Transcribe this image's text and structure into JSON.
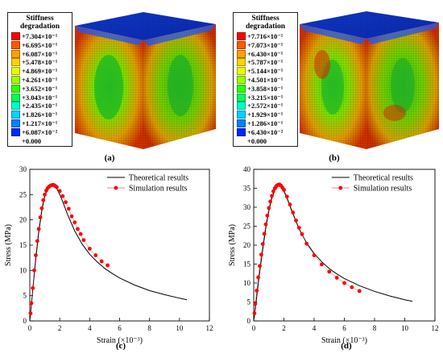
{
  "panels": {
    "a": {
      "label": "(a)",
      "legend_title_1": "Stiffness",
      "legend_title_2": "degradation",
      "entries": [
        "+7.304×10⁻¹",
        "+6.695×10⁻¹",
        "+6.087×10⁻¹",
        "+5.478×10⁻¹",
        "+4.869×10⁻¹",
        "+4.261×10⁻¹",
        "+3.652×10⁻¹",
        "+3.043×10⁻¹",
        "+2.435×10⁻¹",
        "+1.826×10⁻¹",
        "+1.217×10⁻¹",
        "+6.087×10⁻²",
        "+0.000"
      ]
    },
    "b": {
      "label": "(b)",
      "legend_title_1": "Stiffness",
      "legend_title_2": "degradation",
      "entries": [
        "+7.716×10⁻¹",
        "+7.073×10⁻¹",
        "+6.430×10⁻¹",
        "+5.787×10⁻¹",
        "+5.144×10⁻¹",
        "+4.501×10⁻¹",
        "+3.858×10⁻¹",
        "+3.215×10⁻¹",
        "+2.572×10⁻¹",
        "+1.929×10⁻¹",
        "+1.286×10⁻¹",
        "+6.430×10⁻²",
        "+0.000"
      ]
    },
    "c": {
      "label": "(c)"
    },
    "d": {
      "label": "(d)"
    }
  },
  "contour_colors": [
    "#ff0000",
    "#ff5a00",
    "#ffa000",
    "#ffd200",
    "#e6ff00",
    "#a0ff00",
    "#32ff00",
    "#00ff5a",
    "#00ffc8",
    "#00d2ff",
    "#0082ff",
    "#0028ff",
    "#0000c8"
  ],
  "chart_data": [
    {
      "type": "line",
      "xlabel": "Strain (×10⁻³)",
      "ylabel": "Stress (MPa)",
      "xlim": [
        0,
        12
      ],
      "ylim": [
        0,
        30
      ],
      "xticks": [
        "0",
        "2",
        "4",
        "6",
        "8",
        "10",
        "12"
      ],
      "yticks": [
        "0",
        "5",
        "10",
        "15",
        "20",
        "25",
        "30"
      ],
      "legend_position": "top-right",
      "series": [
        {
          "name": "Theoretical results",
          "style": "line",
          "color": "#000000",
          "x": [
            0,
            0.1,
            0.2,
            0.3,
            0.4,
            0.6,
            0.8,
            1.0,
            1.2,
            1.4,
            1.5,
            1.6,
            1.8,
            2.0,
            2.2,
            2.5,
            3.0,
            3.5,
            4.0,
            4.5,
            5.0,
            5.5,
            6.0,
            7.0,
            8.0,
            9.0,
            10.0,
            10.5
          ],
          "y": [
            0,
            3.0,
            6.2,
            9.3,
            12.2,
            17.5,
            21.8,
            24.7,
            26.3,
            26.9,
            27.0,
            26.9,
            26.2,
            25.0,
            23.6,
            21.2,
            17.8,
            15.2,
            13.2,
            11.7,
            10.4,
            9.4,
            8.5,
            7.1,
            6.0,
            5.2,
            4.5,
            4.2
          ]
        },
        {
          "name": "Simulation results",
          "style": "scatter-line",
          "color": "#ff0000",
          "x": [
            0.05,
            0.1,
            0.2,
            0.3,
            0.4,
            0.5,
            0.6,
            0.7,
            0.8,
            0.9,
            1.0,
            1.1,
            1.2,
            1.3,
            1.4,
            1.5,
            1.6,
            1.7,
            1.8,
            2.0,
            2.2,
            2.4,
            2.6,
            2.8,
            3.0,
            3.2,
            3.4,
            3.6,
            4.0,
            4.4,
            4.8,
            5.2
          ],
          "y": [
            1.5,
            3.5,
            6.5,
            10.0,
            13.0,
            15.8,
            18.2,
            20.5,
            22.3,
            23.9,
            25.0,
            25.8,
            26.3,
            26.6,
            26.8,
            26.9,
            26.9,
            26.7,
            26.5,
            25.7,
            24.7,
            23.5,
            22.2,
            20.7,
            19.5,
            18.2,
            17.2,
            16.0,
            14.3,
            13.0,
            11.8,
            11.0
          ]
        }
      ]
    },
    {
      "type": "line",
      "xlabel": "Strain (×10⁻³)",
      "ylabel": "Stress (MPa)",
      "xlim": [
        0,
        12
      ],
      "ylim": [
        0,
        40
      ],
      "xticks": [
        "0",
        "2",
        "4",
        "6",
        "8",
        "10",
        "12"
      ],
      "yticks": [
        "0",
        "5",
        "10",
        "15",
        "20",
        "25",
        "30",
        "35",
        "40"
      ],
      "legend_position": "top-right",
      "series": [
        {
          "name": "Theoretical results",
          "style": "line",
          "color": "#000000",
          "x": [
            0,
            0.1,
            0.2,
            0.3,
            0.4,
            0.6,
            0.8,
            1.0,
            1.2,
            1.4,
            1.6,
            1.7,
            1.8,
            2.0,
            2.2,
            2.5,
            3.0,
            3.5,
            4.0,
            4.5,
            5.0,
            5.5,
            6.0,
            7.0,
            8.0,
            9.0,
            10.0,
            10.5
          ],
          "y": [
            0,
            3.2,
            6.5,
            9.8,
            13.0,
            19.0,
            24.5,
            29.0,
            32.4,
            34.6,
            35.5,
            35.6,
            35.4,
            34.2,
            32.4,
            29.2,
            24.3,
            20.6,
            17.8,
            15.6,
            13.8,
            12.4,
            11.2,
            9.3,
            7.8,
            6.6,
            5.6,
            5.2
          ]
        },
        {
          "name": "Simulation results",
          "style": "scatter-line",
          "color": "#ff0000",
          "x": [
            0.05,
            0.1,
            0.2,
            0.3,
            0.4,
            0.5,
            0.6,
            0.7,
            0.8,
            0.9,
            1.0,
            1.1,
            1.2,
            1.3,
            1.4,
            1.5,
            1.6,
            1.7,
            1.8,
            1.9,
            2.0,
            2.2,
            2.4,
            2.6,
            2.8,
            3.0,
            3.2,
            3.5,
            4.0,
            4.5,
            5.0,
            5.5,
            6.0,
            6.5,
            7.0
          ],
          "y": [
            2.0,
            4.5,
            8.0,
            11.5,
            14.5,
            17.5,
            20.3,
            23.0,
            25.5,
            27.8,
            29.8,
            31.5,
            33.0,
            34.2,
            35.0,
            35.6,
            35.9,
            36.0,
            35.7,
            35.2,
            34.6,
            32.8,
            30.7,
            28.6,
            26.5,
            24.6,
            22.9,
            20.4,
            17.3,
            14.9,
            13.0,
            11.4,
            10.0,
            8.9,
            7.9
          ]
        }
      ]
    }
  ]
}
